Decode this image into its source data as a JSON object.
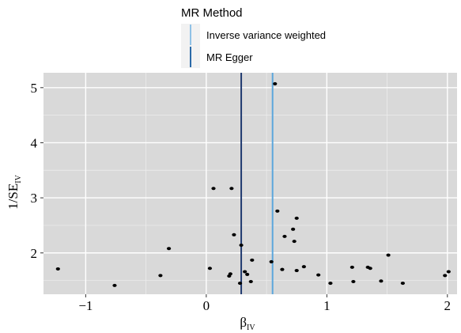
{
  "chart_data": {
    "type": "scatter",
    "title": "",
    "xlabel": "β",
    "xlabel_sub": "IV",
    "ylabel": "1/SE",
    "ylabel_sub": "IV",
    "xlim": [
      -1.35,
      2.08
    ],
    "ylim": [
      1.25,
      5.27
    ],
    "x_ticks": [
      -1,
      0,
      1,
      2
    ],
    "x_tick_labels": [
      "−1",
      "0",
      "1",
      "2"
    ],
    "y_ticks": [
      2,
      3,
      4,
      5
    ],
    "y_tick_labels": [
      "2",
      "3",
      "4",
      "5"
    ],
    "grid": true,
    "background": "#d9d9d9",
    "point_color": "#000000",
    "legend": {
      "title": "MR Method",
      "position": "top",
      "entries": [
        {
          "label": "Inverse variance weighted",
          "color": "#8fc2e6"
        },
        {
          "label": "MR Egger",
          "color": "#2b6aa8"
        }
      ]
    },
    "lines": [
      {
        "name": "MR Egger",
        "x": 0.29,
        "color": "#203a70"
      },
      {
        "name": "Inverse variance weighted",
        "x": 0.55,
        "color": "#5ba6dc"
      }
    ],
    "points": [
      {
        "x": -1.23,
        "y": 1.71
      },
      {
        "x": -0.76,
        "y": 1.41
      },
      {
        "x": -0.38,
        "y": 1.59
      },
      {
        "x": -0.31,
        "y": 2.08
      },
      {
        "x": 0.03,
        "y": 1.72
      },
      {
        "x": 0.06,
        "y": 3.17
      },
      {
        "x": 0.21,
        "y": 3.17
      },
      {
        "x": 0.23,
        "y": 2.33
      },
      {
        "x": 0.29,
        "y": 2.14
      },
      {
        "x": 0.28,
        "y": 1.45
      },
      {
        "x": 0.32,
        "y": 1.66
      },
      {
        "x": 0.34,
        "y": 1.61
      },
      {
        "x": 0.37,
        "y": 1.48
      },
      {
        "x": 0.38,
        "y": 1.87
      },
      {
        "x": 0.19,
        "y": 1.58
      },
      {
        "x": 0.2,
        "y": 1.62
      },
      {
        "x": 0.54,
        "y": 1.84
      },
      {
        "x": 0.57,
        "y": 5.07
      },
      {
        "x": 0.59,
        "y": 2.76
      },
      {
        "x": 0.63,
        "y": 1.7
      },
      {
        "x": 0.65,
        "y": 2.3
      },
      {
        "x": 0.72,
        "y": 2.43
      },
      {
        "x": 0.73,
        "y": 2.21
      },
      {
        "x": 0.75,
        "y": 2.63
      },
      {
        "x": 0.75,
        "y": 1.68
      },
      {
        "x": 0.81,
        "y": 1.75
      },
      {
        "x": 0.93,
        "y": 1.6
      },
      {
        "x": 1.03,
        "y": 1.45
      },
      {
        "x": 1.21,
        "y": 1.74
      },
      {
        "x": 1.22,
        "y": 1.48
      },
      {
        "x": 1.34,
        "y": 1.74
      },
      {
        "x": 1.36,
        "y": 1.72
      },
      {
        "x": 1.45,
        "y": 1.49
      },
      {
        "x": 1.51,
        "y": 1.96
      },
      {
        "x": 1.63,
        "y": 1.45
      },
      {
        "x": 1.98,
        "y": 1.59
      },
      {
        "x": 2.01,
        "y": 1.66
      }
    ]
  }
}
